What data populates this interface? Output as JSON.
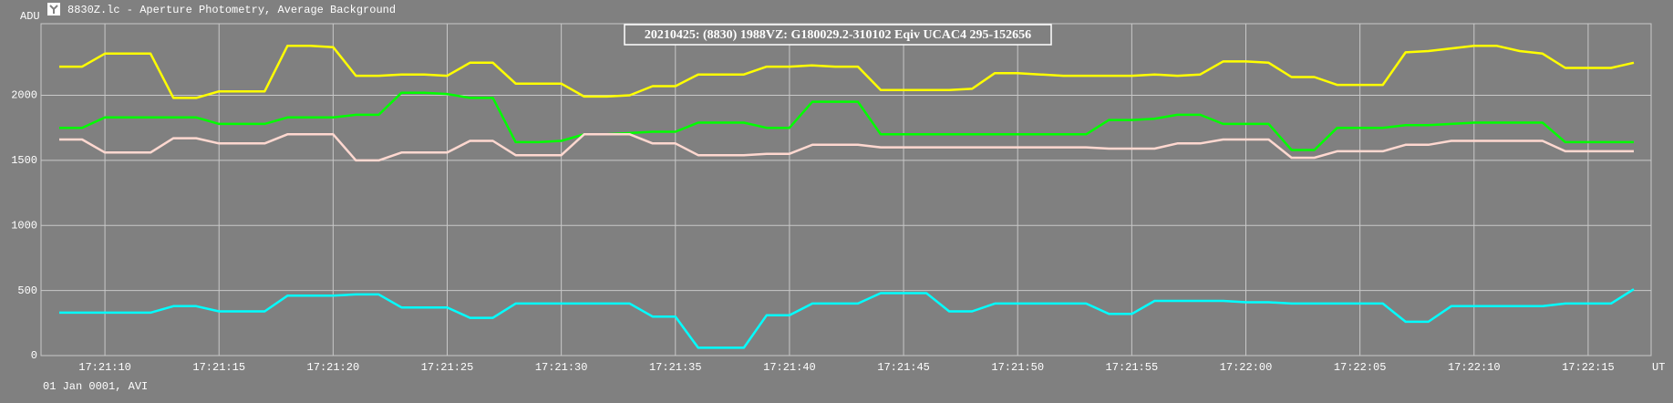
{
  "chart_data": {
    "type": "line",
    "title": "8830Z.lc - Aperture Photometry, Average Background",
    "annotation": "20210425: (8830) 1988VZ: G180029.2-310102 Eqiv UCAC4 295-152656",
    "y_label": "ADU",
    "x_label": "UT",
    "footer": "01 Jan 0001, AVI",
    "x": [
      8,
      9,
      10,
      11,
      12,
      13,
      14,
      15,
      16,
      17,
      18,
      19,
      20,
      21,
      22,
      23,
      24,
      25,
      26,
      27,
      28,
      29,
      30,
      31,
      32,
      33,
      34,
      35,
      36,
      37,
      38,
      39,
      40,
      41,
      42,
      43,
      44,
      45,
      46,
      47,
      48,
      49,
      50,
      51,
      52,
      53,
      54,
      55,
      56,
      57,
      58,
      59,
      60,
      61,
      62,
      63,
      64,
      65,
      66,
      67,
      68,
      69,
      70,
      71,
      72,
      73,
      74,
      75,
      76,
      77
    ],
    "series": [
      {
        "color": "#ffff00",
        "values": [
          2220,
          2220,
          2320,
          2320,
          2320,
          1980,
          1980,
          2030,
          2030,
          2030,
          2380,
          2380,
          2370,
          2150,
          2150,
          2160,
          2160,
          2150,
          2250,
          2250,
          2090,
          2090,
          2090,
          1990,
          1990,
          2000,
          2070,
          2070,
          2160,
          2160,
          2160,
          2220,
          2220,
          2230,
          2220,
          2220,
          2040,
          2040,
          2040,
          2040,
          2050,
          2170,
          2170,
          2160,
          2150,
          2150,
          2150,
          2150,
          2160,
          2150,
          2160,
          2260,
          2260,
          2250,
          2140,
          2140,
          2080,
          2080,
          2080,
          2330,
          2340,
          2360,
          2380,
          2380,
          2340,
          2320,
          2210,
          2210,
          2210,
          2250
        ]
      },
      {
        "color": "#00ff00",
        "values": [
          1750,
          1750,
          1830,
          1830,
          1830,
          1830,
          1830,
          1780,
          1780,
          1780,
          1830,
          1830,
          1830,
          1850,
          1850,
          2020,
          2020,
          2010,
          1980,
          1980,
          1640,
          1640,
          1650,
          1700,
          1700,
          1710,
          1720,
          1720,
          1790,
          1790,
          1790,
          1750,
          1750,
          1950,
          1950,
          1950,
          1700,
          1700,
          1700,
          1700,
          1700,
          1700,
          1700,
          1700,
          1700,
          1700,
          1810,
          1810,
          1820,
          1850,
          1850,
          1780,
          1780,
          1780,
          1580,
          1580,
          1750,
          1750,
          1750,
          1770,
          1770,
          1780,
          1790,
          1790,
          1790,
          1790,
          1640,
          1640,
          1640,
          1640
        ]
      },
      {
        "color": "#ffd8d0",
        "values": [
          1660,
          1660,
          1560,
          1560,
          1560,
          1670,
          1670,
          1630,
          1630,
          1630,
          1700,
          1700,
          1700,
          1500,
          1500,
          1560,
          1560,
          1560,
          1650,
          1650,
          1540,
          1540,
          1540,
          1700,
          1700,
          1700,
          1630,
          1630,
          1540,
          1540,
          1540,
          1550,
          1550,
          1620,
          1620,
          1620,
          1600,
          1600,
          1600,
          1600,
          1600,
          1600,
          1600,
          1600,
          1600,
          1600,
          1590,
          1590,
          1590,
          1630,
          1630,
          1660,
          1660,
          1660,
          1520,
          1520,
          1570,
          1570,
          1570,
          1620,
          1620,
          1650,
          1650,
          1650,
          1650,
          1650,
          1570,
          1570,
          1570,
          1570
        ]
      },
      {
        "color": "#00ffff",
        "values": [
          330,
          330,
          330,
          330,
          330,
          380,
          380,
          340,
          340,
          340,
          460,
          460,
          460,
          470,
          470,
          370,
          370,
          370,
          290,
          290,
          400,
          400,
          400,
          400,
          400,
          400,
          300,
          300,
          60,
          60,
          60,
          310,
          310,
          400,
          400,
          400,
          480,
          480,
          480,
          340,
          340,
          400,
          400,
          400,
          400,
          400,
          320,
          320,
          420,
          420,
          420,
          420,
          410,
          410,
          400,
          400,
          400,
          400,
          400,
          260,
          260,
          380,
          380,
          380,
          380,
          380,
          400,
          400,
          400,
          510
        ]
      }
    ],
    "xlim": [
      7.2,
      77.76
    ],
    "xticks": [
      {
        "value": 10,
        "label": "17:21:10"
      },
      {
        "value": 15,
        "label": "17:21:15"
      },
      {
        "value": 20,
        "label": "17:21:20"
      },
      {
        "value": 25,
        "label": "17:21:25"
      },
      {
        "value": 30,
        "label": "17:21:30"
      },
      {
        "value": 35,
        "label": "17:21:35"
      },
      {
        "value": 40,
        "label": "17:21:40"
      },
      {
        "value": 45,
        "label": "17:21:45"
      },
      {
        "value": 50,
        "label": "17:21:50"
      },
      {
        "value": 55,
        "label": "17:21:55"
      },
      {
        "value": 60,
        "label": "17:22:00"
      },
      {
        "value": 65,
        "label": "17:22:05"
      },
      {
        "value": 70,
        "label": "17:22:10"
      },
      {
        "value": 75,
        "label": "17:22:15"
      }
    ],
    "ylim": [
      0,
      2550
    ],
    "yticks": [
      0,
      500,
      1000,
      1500,
      2000
    ],
    "grid": true
  }
}
